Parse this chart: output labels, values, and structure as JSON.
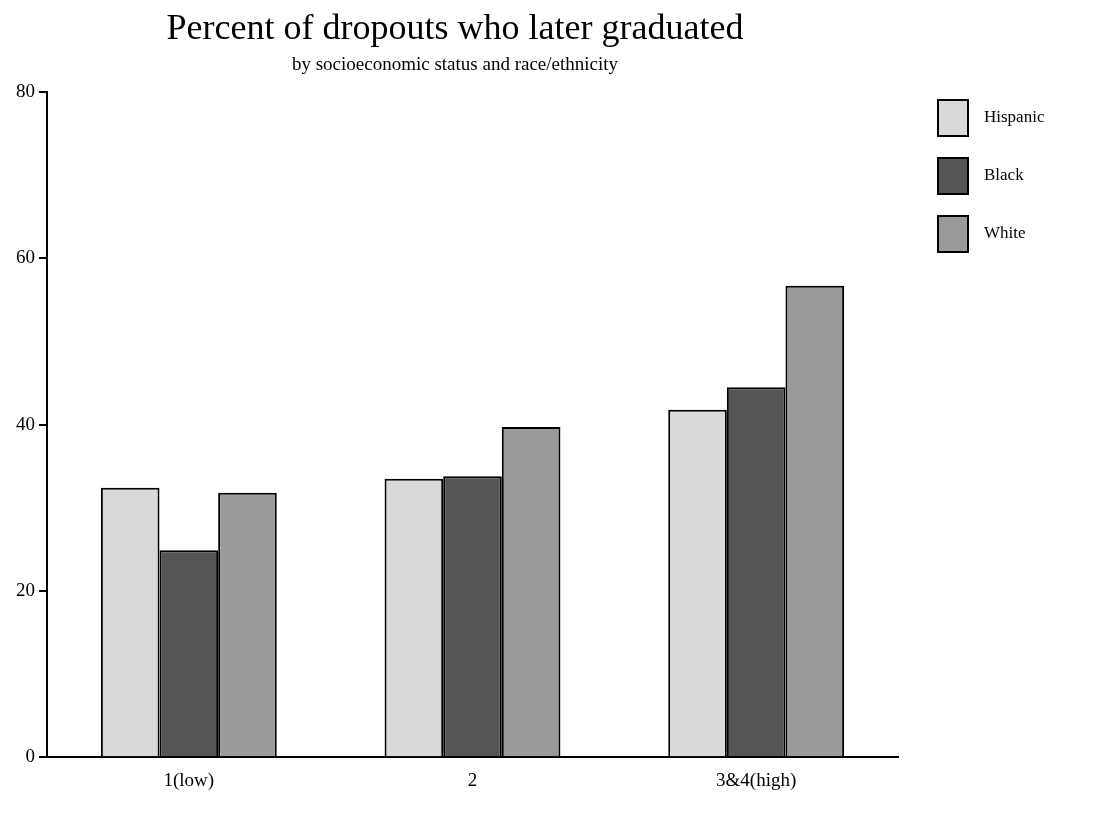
{
  "chart_data": {
    "type": "bar",
    "title": "Percent of dropouts who later graduated",
    "subtitle": "by socioeconomic status and race/ethnicity",
    "categories": [
      "1(low)",
      "2",
      "3&4(high)"
    ],
    "series": [
      {
        "name": "Hispanic",
        "color": "#d9d9d9",
        "values": [
          32.4,
          33.5,
          41.8
        ]
      },
      {
        "name": "Black",
        "color": "#555555",
        "values": [
          24.9,
          33.8,
          44.5
        ]
      },
      {
        "name": "White",
        "color": "#9a9a9a",
        "values": [
          31.8,
          39.7,
          56.7
        ]
      }
    ],
    "ylim": [
      0,
      80
    ],
    "yticks": [
      0,
      20,
      40,
      60,
      80
    ],
    "grid": false,
    "legend": "top right"
  }
}
